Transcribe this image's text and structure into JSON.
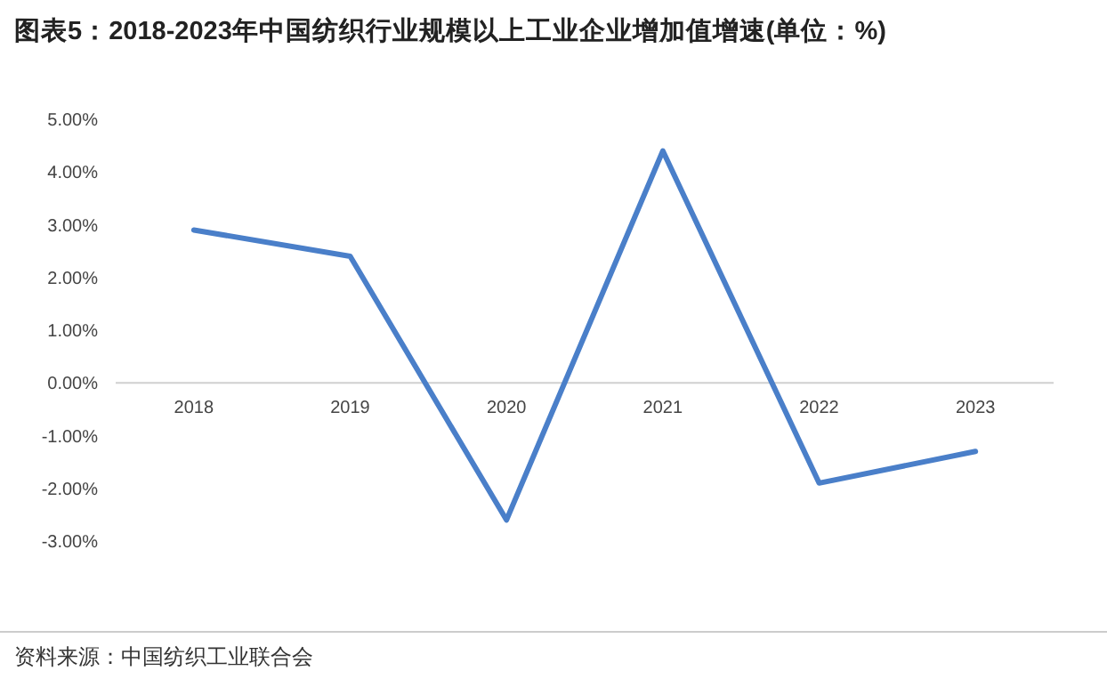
{
  "chart_data": {
    "type": "line",
    "title": "图表5：2018-2023年中国纺织行业规模以上工业企业增加值增速(单位：%)",
    "categories": [
      "2018",
      "2019",
      "2020",
      "2021",
      "2022",
      "2023"
    ],
    "series": [
      {
        "color": "#4a7fc9",
        "values": [
          2.9,
          2.4,
          -2.6,
          4.4,
          -1.9,
          -1.3
        ]
      }
    ],
    "ylim": [
      -3,
      5
    ],
    "yticks": [
      {
        "value": -3,
        "label": "-3.00%"
      },
      {
        "value": -2,
        "label": "-2.00%"
      },
      {
        "value": -1,
        "label": "-1.00%"
      },
      {
        "value": 0,
        "label": "0.00%"
      },
      {
        "value": 1,
        "label": "1.00%"
      },
      {
        "value": 2,
        "label": "2.00%"
      },
      {
        "value": 3,
        "label": "3.00%"
      },
      {
        "value": 4,
        "label": "4.00%"
      },
      {
        "value": 5,
        "label": "5.00%"
      }
    ],
    "grid": false,
    "marker": "none",
    "line_style": "solid",
    "annotations": [
      "资料来源：中国纺织工业联合会"
    ]
  }
}
